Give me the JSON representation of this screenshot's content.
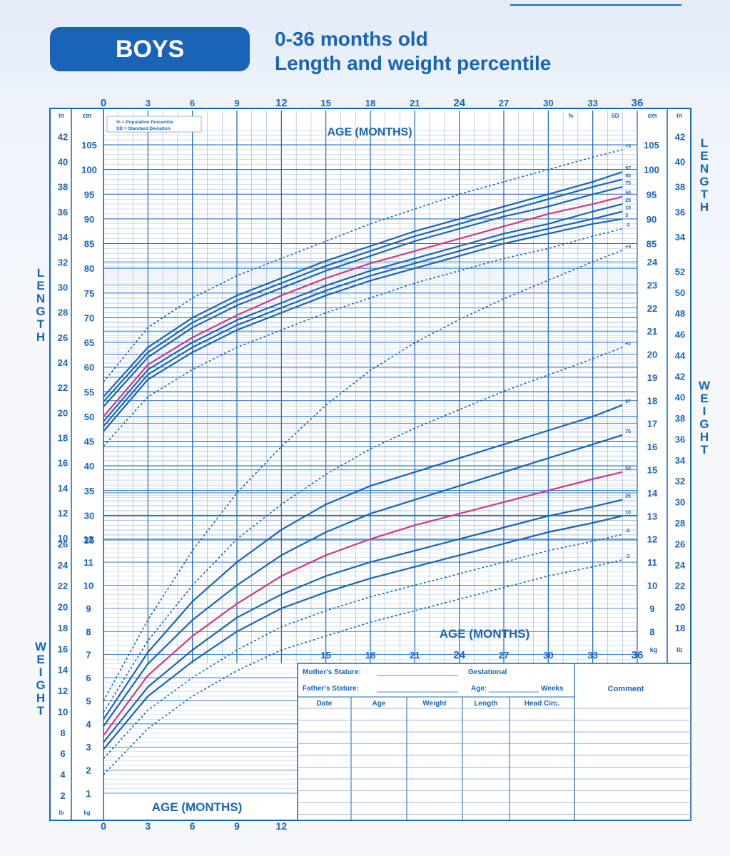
{
  "header": {
    "badge": "BOYS",
    "title_line1": "0-36 months old",
    "title_line2": "Length and weight percentile"
  },
  "colors": {
    "primary": "#1a64b8",
    "grid": "#7ea3d6",
    "median": "#d4387a",
    "background": "#f6f8fc"
  },
  "legend_note": {
    "line1": "% = Population Percentile",
    "line2": "SD = Standard Deviation"
  },
  "axis": {
    "age_label": "AGE (MONTHS)",
    "top_ticks": [
      "0",
      "3",
      "6",
      "9",
      "12",
      "15",
      "18",
      "21",
      "24",
      "27",
      "30",
      "33",
      "36"
    ],
    "length_label": "LENGTH",
    "weight_label": "WEIGHT",
    "in": "in",
    "cm": "cm",
    "lb": "lb",
    "kg": "kg",
    "pct": "%",
    "sd": "SD"
  },
  "form": {
    "mothers_stature": "Mother's Stature:",
    "fathers_stature": "Father's Stature:",
    "gestational": "Gestational",
    "age": "Age:",
    "weeks": "Weeks",
    "comment": "Comment",
    "columns": [
      "Date",
      "Age",
      "Weight",
      "Length",
      "Head Circ."
    ]
  },
  "chart_data": [
    {
      "type": "line",
      "title": "Length",
      "ylabel": "LENGTH",
      "xlabel": "AGE (MONTHS)",
      "x": [
        0,
        3,
        6,
        9,
        12,
        15,
        18,
        21,
        24,
        27,
        30,
        33,
        35
      ],
      "ylim": [
        40,
        108
      ],
      "series": [
        {
          "name": "+3",
          "values": [
            57,
            68,
            74,
            78.5,
            82,
            85.5,
            89,
            92,
            95,
            97.5,
            100,
            102.5,
            104
          ]
        },
        {
          "name": "97",
          "values": [
            54,
            64,
            70,
            74.5,
            78,
            81.5,
            84.5,
            87.5,
            90,
            92.5,
            95,
            97.5,
            99.5
          ]
        },
        {
          "name": "90",
          "values": [
            53,
            63,
            69,
            73.5,
            77,
            80.5,
            83.5,
            86.5,
            89,
            91.5,
            94,
            96.5,
            98
          ]
        },
        {
          "name": "75",
          "values": [
            52,
            62,
            68,
            72.5,
            76,
            79.5,
            82.5,
            85.5,
            88,
            90.5,
            92.5,
            95,
            96.5
          ]
        },
        {
          "name": "50",
          "values": [
            50,
            60.5,
            66,
            70.5,
            74.5,
            78,
            81,
            83.5,
            86,
            88.5,
            91,
            93,
            94.5
          ]
        },
        {
          "name": "25",
          "values": [
            49,
            59.5,
            65,
            69.5,
            73,
            76.5,
            79.5,
            82,
            84.5,
            87,
            89,
            91.5,
            93
          ]
        },
        {
          "name": "10",
          "values": [
            48,
            58.5,
            64,
            68.5,
            72,
            75.5,
            78.5,
            81,
            83.5,
            86,
            88,
            90,
            91.5
          ]
        },
        {
          "name": "3",
          "values": [
            47,
            57.5,
            63,
            67.5,
            71,
            74.5,
            77.5,
            80,
            82.5,
            85,
            87,
            89,
            90
          ]
        },
        {
          "name": "-3",
          "values": [
            44,
            54,
            59.5,
            64,
            67.5,
            71,
            74,
            77,
            79.5,
            82,
            84,
            86.5,
            88
          ]
        }
      ]
    },
    {
      "type": "line",
      "title": "Weight",
      "ylabel": "WEIGHT",
      "xlabel": "AGE (MONTHS)",
      "x": [
        0,
        3,
        6,
        9,
        12,
        15,
        18,
        21,
        24,
        27,
        30,
        33,
        35
      ],
      "ylim": [
        0,
        25
      ],
      "series": [
        {
          "name": "+3",
          "values": [
            5.0,
            8.5,
            11.5,
            14.0,
            16.0,
            17.8,
            19.3,
            20.5,
            21.5,
            22.4,
            23.2,
            24.0,
            24.5
          ]
        },
        {
          "name": "+2",
          "values": [
            4.5,
            7.6,
            10.0,
            12.0,
            13.5,
            14.8,
            15.9,
            16.8,
            17.6,
            18.4,
            19.1,
            19.8,
            20.3
          ]
        },
        {
          "name": "97",
          "values": [
            4.2,
            7.1,
            9.3,
            11.0,
            12.4,
            13.5,
            14.3,
            14.9,
            15.5,
            16.1,
            16.7,
            17.3,
            17.8
          ]
        },
        {
          "name": "75",
          "values": [
            3.9,
            6.6,
            8.5,
            10.0,
            11.3,
            12.3,
            13.1,
            13.7,
            14.3,
            14.9,
            15.5,
            16.1,
            16.5
          ]
        },
        {
          "name": "50",
          "values": [
            3.5,
            6.1,
            7.8,
            9.2,
            10.4,
            11.3,
            12.0,
            12.6,
            13.1,
            13.6,
            14.1,
            14.6,
            14.9
          ]
        },
        {
          "name": "25",
          "values": [
            3.2,
            5.6,
            7.2,
            8.6,
            9.6,
            10.4,
            11.0,
            11.5,
            12.0,
            12.5,
            13.0,
            13.4,
            13.7
          ]
        },
        {
          "name": "10",
          "values": [
            2.9,
            5.2,
            6.7,
            8.0,
            9.0,
            9.7,
            10.3,
            10.8,
            11.3,
            11.8,
            12.3,
            12.7,
            13.0
          ]
        },
        {
          "name": "-2",
          "values": [
            2.5,
            4.6,
            6.0,
            7.2,
            8.2,
            8.9,
            9.5,
            10.0,
            10.5,
            11.0,
            11.5,
            11.9,
            12.2
          ]
        },
        {
          "name": "-3",
          "values": [
            1.8,
            3.8,
            5.2,
            6.3,
            7.2,
            7.8,
            8.4,
            8.9,
            9.4,
            9.9,
            10.4,
            10.8,
            11.1
          ]
        }
      ]
    }
  ]
}
